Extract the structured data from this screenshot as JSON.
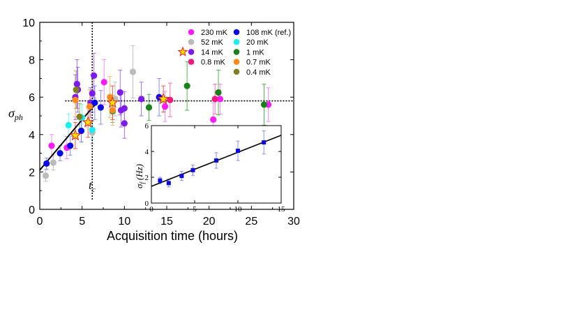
{
  "chart_data": [
    {
      "type": "scatter",
      "xlabel": "Acquisition time (hours)",
      "ylabel": "σ",
      "ylabel_sub": "ph",
      "xlim": [
        0,
        30
      ],
      "ylim": [
        0,
        10
      ],
      "xticks": [
        0,
        5,
        10,
        15,
        20,
        25,
        30
      ],
      "yticks": [
        0,
        2,
        4,
        6,
        8,
        10
      ],
      "grid": false,
      "legend_placement": "top-right",
      "annotations": {
        "tc_label": "t",
        "tc_sub": "c",
        "tc_x": 6.2,
        "plateau_y": 5.8,
        "plateau_from_x": 3.0,
        "fit_line": {
          "x0": 0.0,
          "y0": 2.1,
          "x1": 6.6,
          "y1": 5.65
        }
      },
      "series": [
        {
          "name": "230 mK",
          "color": "#ff1aff",
          "marker": "circle",
          "errcolor": "#ff7fff",
          "points": [
            {
              "x": 1.4,
              "y": 3.4,
              "err": 0.6
            },
            {
              "x": 3.2,
              "y": 3.3,
              "err": 0.6
            },
            {
              "x": 7.6,
              "y": 6.8,
              "err": 1.2
            },
            {
              "x": 14.8,
              "y": 5.5,
              "err": 0.8
            },
            {
              "x": 20.5,
              "y": 4.8,
              "err": 0.9
            },
            {
              "x": 21.3,
              "y": 5.9,
              "err": 0.8
            },
            {
              "x": 27.0,
              "y": 5.6,
              "err": 0.9
            }
          ]
        },
        {
          "name": "52 mK",
          "color": "#bbbbbb",
          "marker": "circle",
          "errcolor": "#bbbbbb",
          "points": [
            {
              "x": 0.7,
              "y": 1.8,
              "err": 0.3
            },
            {
              "x": 1.6,
              "y": 2.5,
              "err": 0.4
            },
            {
              "x": 6.2,
              "y": 4.1,
              "err": 0.6
            },
            {
              "x": 11.0,
              "y": 7.35,
              "err": 1.4
            },
            {
              "x": 8.9,
              "y": 5.9,
              "err": 0.9
            }
          ]
        },
        {
          "name": "14 mK",
          "color": "#7f1aee",
          "marker": "circle",
          "errcolor": "#a060ff",
          "points": [
            {
              "x": 4.4,
              "y": 6.7,
              "err": 1.3
            },
            {
              "x": 4.2,
              "y": 6.0,
              "err": 1.2
            },
            {
              "x": 4.5,
              "y": 6.4,
              "err": 1.2
            },
            {
              "x": 6.4,
              "y": 7.15,
              "err": 1.2
            },
            {
              "x": 6.2,
              "y": 6.2,
              "err": 1.0
            },
            {
              "x": 6.0,
              "y": 5.7,
              "err": 0.8
            },
            {
              "x": 9.5,
              "y": 6.25,
              "err": 1.2
            },
            {
              "x": 9.6,
              "y": 5.3,
              "err": 0.9
            },
            {
              "x": 10.0,
              "y": 5.4,
              "err": 0.9
            },
            {
              "x": 10.0,
              "y": 4.6,
              "err": 0.8
            },
            {
              "x": 12.0,
              "y": 5.9,
              "err": 0.9
            }
          ]
        },
        {
          "name": "0.8 mK",
          "color": "#ee1a7f",
          "marker": "circle",
          "errcolor": "#ff60a0",
          "points": [
            {
              "x": 15.4,
              "y": 5.85,
              "err": 0.9
            },
            {
              "x": 20.7,
              "y": 5.9,
              "err": 0.8
            }
          ]
        },
        {
          "name": "108 mK (ref.)",
          "color": "#0a0ae6",
          "marker": "circle",
          "errcolor": "#7f7fff",
          "points": [
            {
              "x": 0.8,
              "y": 2.45,
              "err": 0.3
            },
            {
              "x": 2.4,
              "y": 3.0,
              "err": 0.4
            },
            {
              "x": 3.6,
              "y": 3.4,
              "err": 0.5
            },
            {
              "x": 4.9,
              "y": 4.2,
              "err": 0.6
            },
            {
              "x": 6.5,
              "y": 5.7,
              "err": 0.9
            },
            {
              "x": 7.2,
              "y": 5.45,
              "err": 0.9
            },
            {
              "x": 14.1,
              "y": 6.0,
              "err": 1.0
            }
          ]
        },
        {
          "name": "20 mK",
          "color": "#1aeeee",
          "marker": "circle",
          "errcolor": "#60ffff",
          "points": [
            {
              "x": 3.4,
              "y": 4.5,
              "err": 0.6
            },
            {
              "x": 6.2,
              "y": 4.25,
              "err": 0.5
            },
            {
              "x": 5.0,
              "y": 4.9,
              "err": 0.7
            }
          ]
        },
        {
          "name": "1 mK",
          "color": "#1a801a",
          "marker": "circle",
          "errcolor": "#40b040",
          "points": [
            {
              "x": 8.6,
              "y": 5.25,
              "err": 0.6
            },
            {
              "x": 12.9,
              "y": 5.45,
              "err": 0.7
            },
            {
              "x": 17.4,
              "y": 6.6,
              "err": 1.3
            },
            {
              "x": 21.1,
              "y": 6.25,
              "err": 1.2
            },
            {
              "x": 26.5,
              "y": 5.6,
              "err": 1.1
            }
          ]
        },
        {
          "name": "0.7 mK",
          "color": "#ff8a1a",
          "marker": "circle",
          "errcolor": "#ffb060",
          "points": [
            {
              "x": 4.2,
              "y": 5.85,
              "err": 0.9
            },
            {
              "x": 5.9,
              "y": 5.5,
              "err": 0.9
            },
            {
              "x": 8.3,
              "y": 6.0,
              "err": 1.1
            },
            {
              "x": 8.6,
              "y": 5.3,
              "err": 0.8
            }
          ]
        },
        {
          "name": "0.4 mK",
          "color": "#808020",
          "marker": "circle",
          "errcolor": "#a0a040",
          "points": [
            {
              "x": 4.3,
              "y": 6.4,
              "err": 1.0
            },
            {
              "x": 4.7,
              "y": 4.95,
              "err": 0.7
            }
          ]
        },
        {
          "name": "0.8 mK",
          "color": "#ffe000",
          "edge": "#ee1a1a",
          "marker": "star",
          "errcolor": "#ff4040",
          "points": [
            {
              "x": 4.2,
              "y": 3.95,
              "err": 0.7
            },
            {
              "x": 5.7,
              "y": 4.65,
              "err": 0.8
            },
            {
              "x": 8.6,
              "y": 5.7,
              "err": 0.9
            },
            {
              "x": 14.6,
              "y": 5.9,
              "err": 0.7
            }
          ]
        }
      ],
      "legend": [
        {
          "label": "230 mK",
          "color": "#ff1aff",
          "marker": "circle"
        },
        {
          "label": "108 mK (ref.)",
          "color": "#0a0ae6",
          "marker": "circle"
        },
        {
          "label": "52 mK",
          "color": "#bbbbbb",
          "marker": "circle"
        },
        {
          "label": "20 mK",
          "color": "#1aeeee",
          "marker": "circle"
        },
        {
          "label": "14 mK",
          "color": "#7f1aee",
          "marker": "circle",
          "extra_star": true
        },
        {
          "label": "1 mK",
          "color": "#1a801a",
          "marker": "circle"
        },
        {
          "label": "0.8 mK",
          "color": "#ee1a7f",
          "marker": "circle"
        },
        {
          "label": "0.7 mK",
          "color": "#ff8a1a",
          "marker": "circle"
        },
        {
          "label": "",
          "color": "",
          "marker": "none"
        },
        {
          "label": "0.4 mK",
          "color": "#808020",
          "marker": "circle"
        }
      ]
    },
    {
      "type": "scatter",
      "inset": true,
      "ylabel": "σ",
      "ylabel_sub": "f",
      "ylabel_unit": "(Hz)",
      "xlim": [
        0,
        15
      ],
      "ylim": [
        0,
        6
      ],
      "xticks": [
        0,
        5,
        10,
        15
      ],
      "yticks": [
        0,
        2,
        4,
        6
      ],
      "grid": false,
      "fit_line": {
        "x0": 0.0,
        "y0": 1.3,
        "x1": 15.0,
        "y1": 5.25
      },
      "series": [
        {
          "color": "#0a0ae6",
          "marker": "square",
          "points": [
            {
              "x": 1.0,
              "y": 1.75,
              "err": 0.25
            },
            {
              "x": 2.0,
              "y": 1.55,
              "err": 0.3
            },
            {
              "x": 3.5,
              "y": 2.1,
              "err": 0.35
            },
            {
              "x": 4.8,
              "y": 2.55,
              "err": 0.4
            },
            {
              "x": 7.5,
              "y": 3.3,
              "err": 0.6
            },
            {
              "x": 10.0,
              "y": 4.05,
              "err": 0.75
            },
            {
              "x": 13.0,
              "y": 4.7,
              "err": 0.9
            }
          ]
        }
      ]
    }
  ]
}
